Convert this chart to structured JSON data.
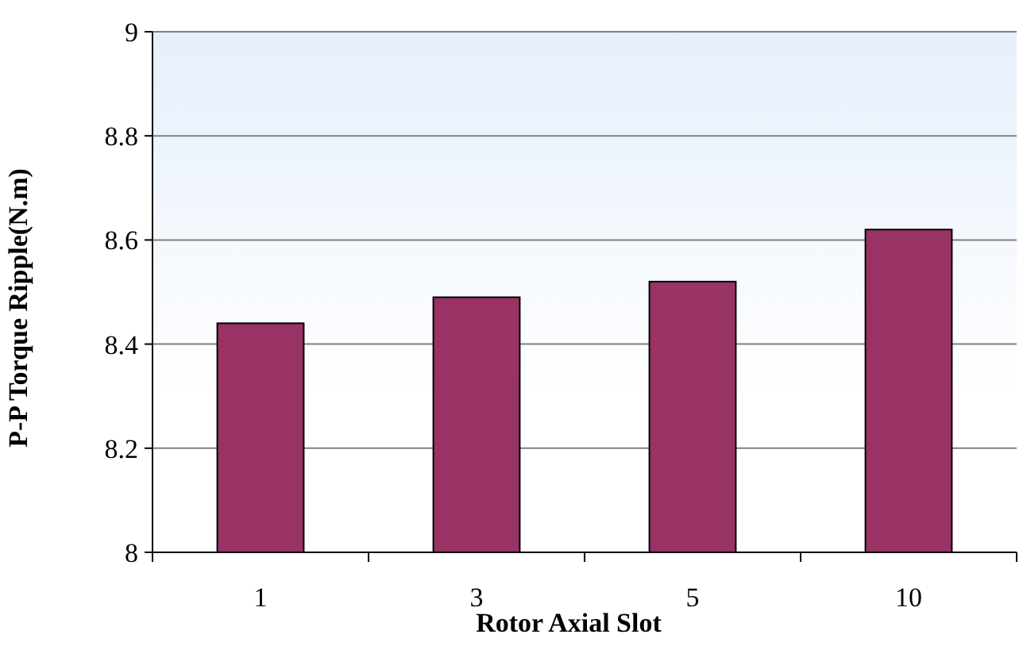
{
  "chart_data": {
    "type": "bar",
    "xlabel": "Rotor Axial Slot",
    "ylabel": "P-P Torque Ripple(N.m)",
    "categories": [
      "1",
      "3",
      "5",
      "10"
    ],
    "values": [
      8.44,
      8.49,
      8.52,
      8.62
    ],
    "color": "#993366",
    "ylim": [
      8,
      9
    ],
    "yticks": [
      8,
      8.2,
      8.4,
      8.6,
      8.8,
      9
    ],
    "grid": "y"
  }
}
